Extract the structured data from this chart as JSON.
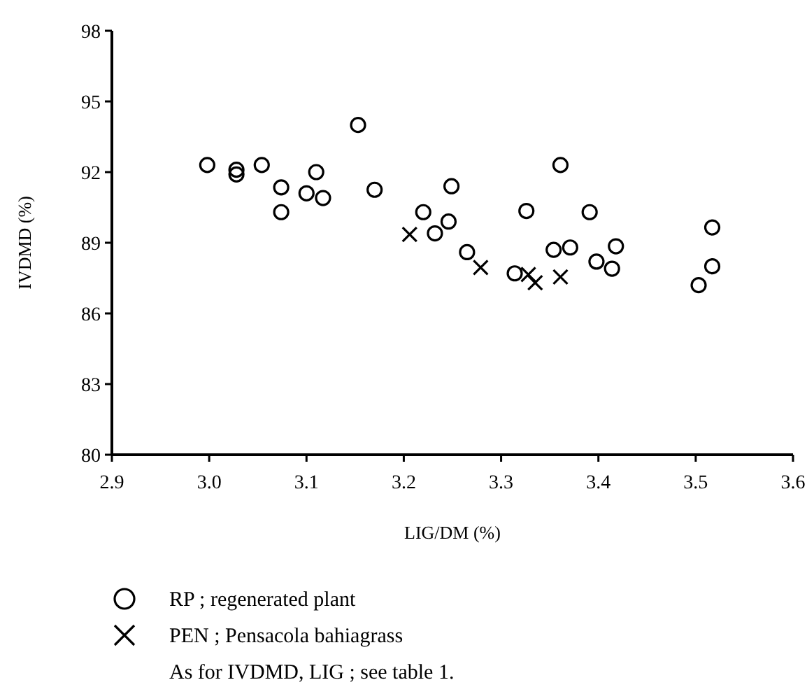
{
  "chart_data": {
    "type": "scatter",
    "xlabel": "LIG/DM (%)",
    "ylabel": "IVDMD (%)",
    "xlim": [
      2.9,
      3.6
    ],
    "xticks": [
      {
        "value": 2.9,
        "label": "2.9"
      },
      {
        "value": 3.0,
        "label": "3.0"
      },
      {
        "value": 3.1,
        "label": "3.1"
      },
      {
        "value": 3.2,
        "label": "3.2"
      },
      {
        "value": 3.3,
        "label": "3.3"
      },
      {
        "value": 3.4,
        "label": "3.4"
      },
      {
        "value": 3.5,
        "label": "3.5"
      },
      {
        "value": 3.6,
        "label": "3.6"
      }
    ],
    "ylim": [
      80,
      98
    ],
    "yticks": [
      80,
      83,
      86,
      89,
      92,
      95,
      98
    ],
    "grid": false,
    "legend": "bottom",
    "series": [
      {
        "name": "RP ; regenerated plant",
        "color": "#000000",
        "marker": "circle",
        "x": [
          2.998,
          3.028,
          3.028,
          3.054,
          3.074,
          3.074,
          3.1,
          3.11,
          3.117,
          3.153,
          3.17,
          3.22,
          3.232,
          3.246,
          3.249,
          3.265,
          3.314,
          3.326,
          3.354,
          3.361,
          3.371,
          3.391,
          3.398,
          3.414,
          3.418,
          3.503,
          3.517,
          3.517
        ],
        "values": [
          92.3,
          92.1,
          91.9,
          92.3,
          91.35,
          90.3,
          91.1,
          92.0,
          90.9,
          94.0,
          91.25,
          90.3,
          89.4,
          89.9,
          91.4,
          88.6,
          87.7,
          90.35,
          88.7,
          92.3,
          88.8,
          90.3,
          88.2,
          87.9,
          88.85,
          87.2,
          88.0,
          89.65
        ]
      },
      {
        "name": "PEN ; Pensacola bahiagrass",
        "color": "#000000",
        "marker": "cross",
        "x": [
          3.206,
          3.279,
          3.328,
          3.335,
          3.361
        ],
        "values": [
          89.35,
          87.95,
          87.65,
          87.3,
          87.55
        ]
      }
    ],
    "annotations": [
      "As for IVDMD, LIG ; see table 1."
    ]
  }
}
